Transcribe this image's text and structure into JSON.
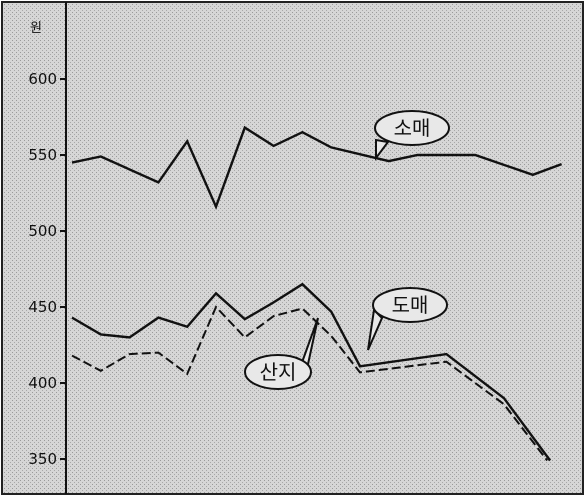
{
  "chart_data": {
    "type": "line",
    "ylabel": "원",
    "ylim": [
      330,
      620
    ],
    "yticks": [
      350,
      400,
      450,
      500,
      550,
      600
    ],
    "grid": false,
    "x": [
      1,
      2,
      3,
      4,
      5,
      6,
      7,
      8,
      9,
      10,
      11,
      12,
      13,
      14,
      15,
      16,
      17,
      18
    ],
    "series": [
      {
        "name": "소매",
        "style": "solid",
        "x": [
          1,
          2,
          4,
          5,
          6,
          7,
          8,
          9,
          10,
          12,
          13,
          15,
          17,
          18
        ],
        "values": [
          545,
          549,
          532,
          559,
          516,
          568,
          556,
          565,
          555,
          546,
          550,
          550,
          537,
          544
        ]
      },
      {
        "name": "도매",
        "style": "solid",
        "x": [
          1,
          2,
          3,
          4,
          5,
          6,
          7,
          8,
          9,
          10,
          11,
          14,
          16,
          17.6
        ],
        "values": [
          443,
          432,
          430,
          443,
          437,
          459,
          442,
          453,
          465,
          447,
          411,
          419,
          390,
          349
        ]
      },
      {
        "name": "산지",
        "style": "dashed",
        "x": [
          1,
          2,
          3,
          4,
          5,
          6,
          7,
          8,
          9,
          10,
          11,
          14,
          16,
          17.5
        ],
        "values": [
          418,
          408,
          419,
          420,
          406,
          450,
          430,
          444,
          449,
          431,
          407,
          414,
          386,
          349
        ]
      }
    ],
    "callouts": [
      {
        "text": "소매",
        "series": "소매"
      },
      {
        "text": "도매",
        "series": "도매"
      },
      {
        "text": "산지",
        "series": "산지"
      }
    ],
    "colors": {
      "background": "#d4d4d4",
      "line": "#111111",
      "frame": "#222222"
    }
  }
}
